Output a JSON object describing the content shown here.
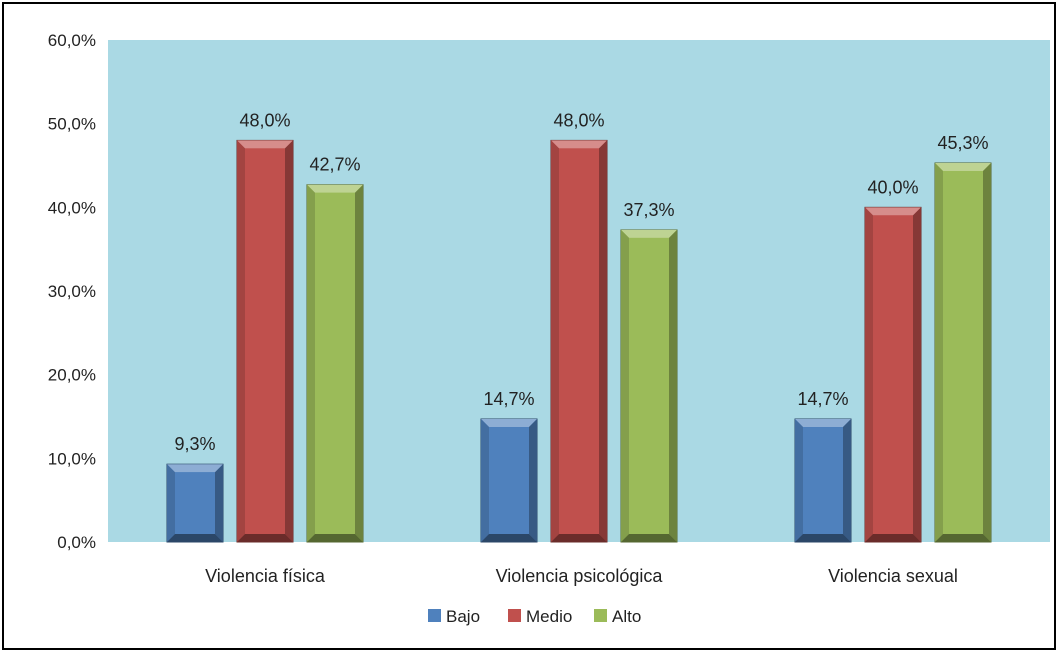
{
  "chart_data": {
    "type": "bar",
    "categories": [
      "Violencia física",
      "Violencia psicológica",
      "Violencia sexual"
    ],
    "series": [
      {
        "name": "Bajo",
        "values": [
          9.3,
          14.7,
          14.7
        ],
        "labels": [
          "9,3%",
          "14,7%",
          "14,7%"
        ]
      },
      {
        "name": "Medio",
        "values": [
          48.0,
          48.0,
          40.0
        ],
        "labels": [
          "48,0%",
          "48,0%",
          "40,0%"
        ]
      },
      {
        "name": "Alto",
        "values": [
          42.7,
          37.3,
          45.3
        ],
        "labels": [
          "42,7%",
          "37,3%",
          "45,3%"
        ]
      }
    ],
    "ylim": [
      0,
      60
    ],
    "yticks": [
      0,
      10,
      20,
      30,
      40,
      50,
      60
    ],
    "ytick_labels": [
      "0,0%",
      "10,0%",
      "20,0%",
      "30,0%",
      "40,0%",
      "50,0%",
      "60,0%"
    ],
    "grid": false,
    "legend_position": "bottom",
    "colors": {
      "plot_background": "#aad9e4",
      "series": [
        "#4f81bd",
        "#c0504d",
        "#9bbb59"
      ]
    }
  }
}
